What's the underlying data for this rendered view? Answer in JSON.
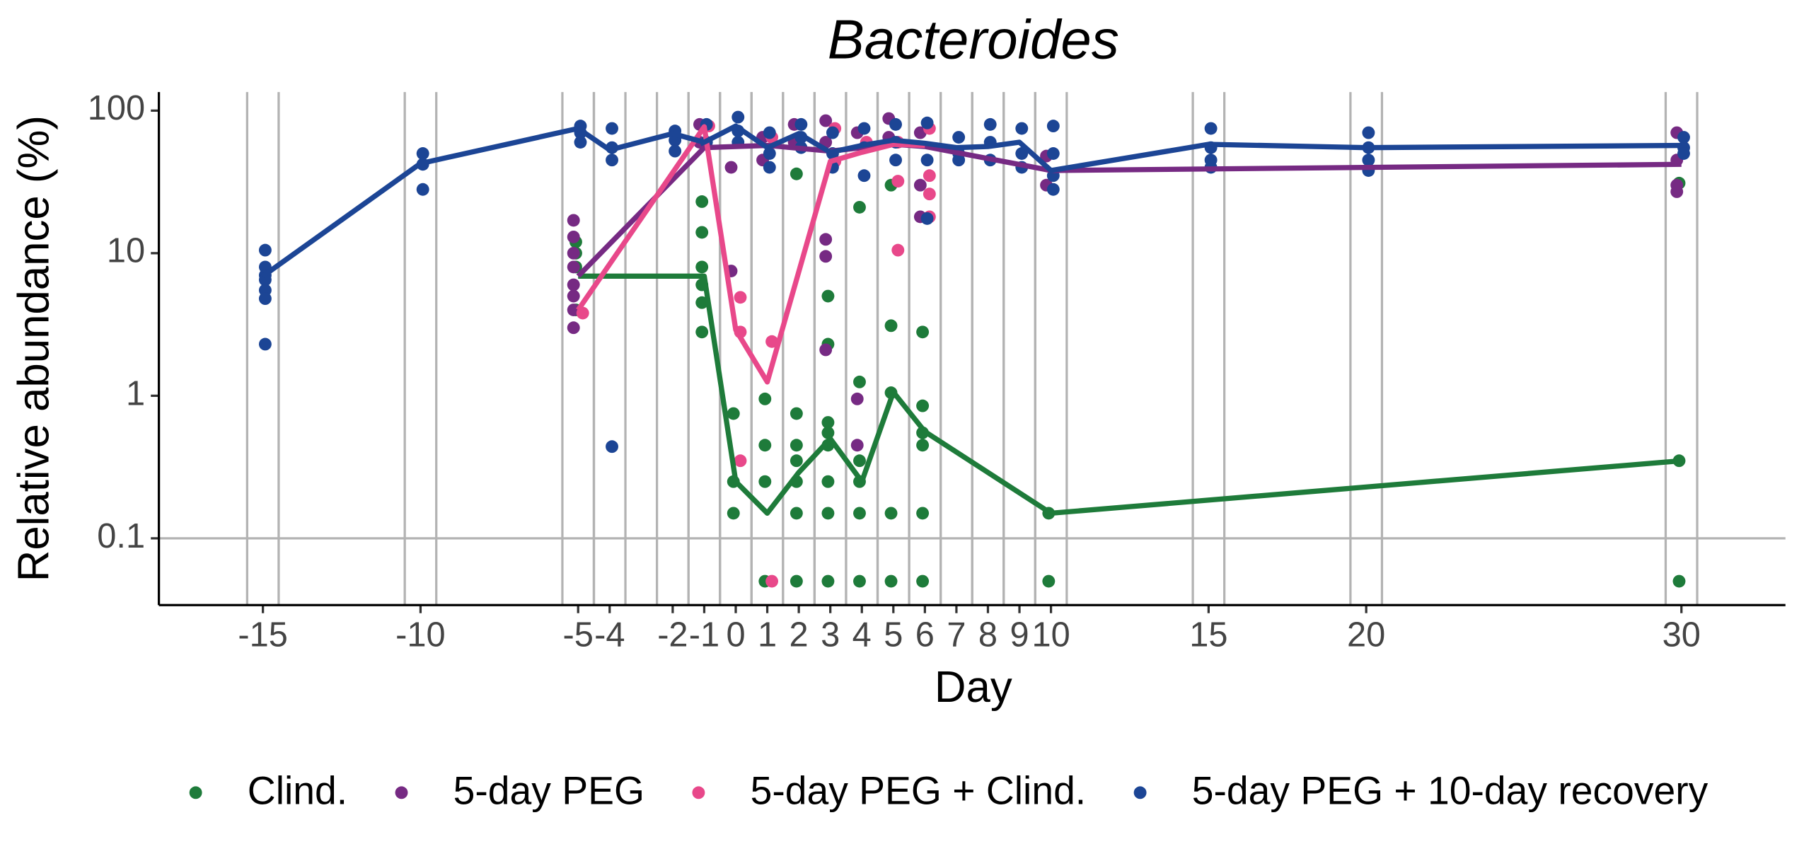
{
  "chart_data": {
    "type": "line",
    "title": "Bacteroides",
    "xlabel": "Day",
    "ylabel": "Relative abundance (%)",
    "log_y": true,
    "xlim": [
      -18.3,
      33.3
    ],
    "ylim": [
      0.034,
      135
    ],
    "xticks": [
      -15,
      -10,
      -5,
      -4,
      -2,
      -1,
      0,
      1,
      2,
      3,
      4,
      5,
      6,
      7,
      8,
      9,
      10,
      15,
      20,
      30
    ],
    "yticks": [
      0.1,
      1,
      10,
      100
    ],
    "hline": 0.1,
    "legend": "bottom",
    "series": [
      {
        "name": "Clind.",
        "color": "#1e7b3a",
        "x": [
          -5,
          -1,
          0,
          1,
          2,
          3,
          4,
          5,
          6,
          10,
          30
        ],
        "values": [
          6.9,
          6.9,
          0.25,
          0.15,
          0.29,
          0.5,
          0.25,
          1.06,
          0.56,
          0.15,
          0.35
        ],
        "points": [
          [
            -5,
            4
          ],
          [
            -5,
            8
          ],
          [
            -5,
            10
          ],
          [
            -5,
            12
          ],
          [
            -1,
            23
          ],
          [
            -1,
            14
          ],
          [
            -1,
            8
          ],
          [
            -1,
            6
          ],
          [
            -1,
            4.5
          ],
          [
            -1,
            2.8
          ],
          [
            0,
            0.75
          ],
          [
            0,
            0.25
          ],
          [
            0,
            0.15
          ],
          [
            1,
            0.95
          ],
          [
            1,
            0.45
          ],
          [
            1,
            0.25
          ],
          [
            1,
            0.05
          ],
          [
            2,
            36
          ],
          [
            2,
            0.75
          ],
          [
            2,
            0.45
          ],
          [
            2,
            0.35
          ],
          [
            2,
            0.25
          ],
          [
            2,
            0.15
          ],
          [
            2,
            0.05
          ],
          [
            3,
            5
          ],
          [
            3,
            2.3
          ],
          [
            3,
            0.65
          ],
          [
            3,
            0.55
          ],
          [
            3,
            0.45
          ],
          [
            3,
            0.25
          ],
          [
            3,
            0.15
          ],
          [
            3,
            0.05
          ],
          [
            4,
            21
          ],
          [
            4,
            1.25
          ],
          [
            4,
            0.35
          ],
          [
            4,
            0.25
          ],
          [
            4,
            0.15
          ],
          [
            4,
            0.05
          ],
          [
            5,
            30
          ],
          [
            5,
            3.1
          ],
          [
            5,
            1.05
          ],
          [
            5,
            0.15
          ],
          [
            5,
            0.05
          ],
          [
            6,
            2.8
          ],
          [
            6,
            0.85
          ],
          [
            6,
            0.55
          ],
          [
            6,
            0.45
          ],
          [
            6,
            0.15
          ],
          [
            6,
            0.05
          ],
          [
            10,
            0.15
          ],
          [
            10,
            0.05
          ],
          [
            30,
            31
          ],
          [
            30,
            0.35
          ],
          [
            30,
            0.05
          ]
        ]
      },
      {
        "name": "5-day PEG",
        "color": "#762a83",
        "x": [
          -5,
          -1,
          1,
          3,
          5,
          6,
          10,
          30
        ],
        "values": [
          6.9,
          55,
          57,
          52,
          58,
          56,
          38,
          42
        ],
        "points": [
          [
            -5,
            17
          ],
          [
            -5,
            13
          ],
          [
            -5,
            10
          ],
          [
            -5,
            8
          ],
          [
            -5,
            6
          ],
          [
            -5,
            5
          ],
          [
            -5,
            4
          ],
          [
            -5,
            3
          ],
          [
            -1,
            80
          ],
          [
            -1,
            60
          ],
          [
            0,
            40
          ],
          [
            0,
            7.5
          ],
          [
            1,
            65
          ],
          [
            1,
            45
          ],
          [
            2,
            80
          ],
          [
            2,
            60
          ],
          [
            3,
            85
          ],
          [
            3,
            60
          ],
          [
            3,
            12.5
          ],
          [
            3,
            9.5
          ],
          [
            3,
            2.1
          ],
          [
            4,
            70
          ],
          [
            4,
            0.95
          ],
          [
            4,
            0.45
          ],
          [
            5,
            88
          ],
          [
            5,
            65
          ],
          [
            6,
            30
          ],
          [
            6,
            18
          ],
          [
            6,
            70
          ],
          [
            10,
            48
          ],
          [
            10,
            30
          ],
          [
            30,
            70
          ],
          [
            30,
            45
          ],
          [
            30,
            30
          ],
          [
            30,
            27
          ]
        ]
      },
      {
        "name": "5-day PEG + Clind.",
        "color": "#e8488a",
        "x": [
          -5,
          -1,
          0,
          1,
          3,
          4,
          5,
          6
        ],
        "values": [
          4,
          77,
          2.9,
          1.25,
          44,
          51,
          58,
          57
        ],
        "points": [
          [
            -5,
            3.8
          ],
          [
            -1,
            78
          ],
          [
            0,
            4.9
          ],
          [
            0,
            2.8
          ],
          [
            0,
            0.35
          ],
          [
            1,
            2.4
          ],
          [
            1,
            0.05
          ],
          [
            1,
            65
          ],
          [
            3,
            44
          ],
          [
            3,
            75
          ],
          [
            4,
            60
          ],
          [
            5,
            60
          ],
          [
            5,
            32
          ],
          [
            5,
            10.5
          ],
          [
            6,
            75
          ],
          [
            6,
            35
          ],
          [
            6,
            26
          ],
          [
            6,
            18
          ]
        ]
      },
      {
        "name": "5-day PEG + 10-day recovery",
        "color": "#1c4595",
        "x": [
          -15,
          -10,
          -5,
          -4,
          -2,
          -1,
          0,
          1,
          2,
          3,
          4,
          5,
          6,
          7,
          8,
          9,
          10,
          15,
          20,
          30
        ],
        "values": [
          6.9,
          42.6,
          75,
          53,
          69,
          60,
          78,
          55,
          69,
          51,
          57,
          62,
          59,
          55,
          56,
          60,
          38,
          58,
          55,
          57
        ],
        "points": [
          [
            -15,
            10.5
          ],
          [
            -15,
            8
          ],
          [
            -15,
            7
          ],
          [
            -15,
            6.5
          ],
          [
            -15,
            5.5
          ],
          [
            -15,
            4.8
          ],
          [
            -15,
            2.3
          ],
          [
            -10,
            50
          ],
          [
            -10,
            42
          ],
          [
            -10,
            28
          ],
          [
            -5,
            78
          ],
          [
            -5,
            70
          ],
          [
            -5,
            60
          ],
          [
            -4,
            75
          ],
          [
            -4,
            55
          ],
          [
            -4,
            45
          ],
          [
            -4,
            0.44
          ],
          [
            -2,
            72
          ],
          [
            -2,
            62
          ],
          [
            -2,
            52
          ],
          [
            -1,
            80
          ],
          [
            -1,
            60
          ],
          [
            0,
            90
          ],
          [
            0,
            72
          ],
          [
            0,
            60
          ],
          [
            1,
            70
          ],
          [
            1,
            50
          ],
          [
            1,
            40
          ],
          [
            2,
            80
          ],
          [
            2,
            65
          ],
          [
            2,
            55
          ],
          [
            3,
            70
          ],
          [
            3,
            50
          ],
          [
            3,
            40
          ],
          [
            4,
            75
          ],
          [
            4,
            55
          ],
          [
            4,
            35
          ],
          [
            5,
            80
          ],
          [
            5,
            60
          ],
          [
            5,
            45
          ],
          [
            6,
            82
          ],
          [
            6,
            45
          ],
          [
            6,
            17.5
          ],
          [
            7,
            65
          ],
          [
            7,
            50
          ],
          [
            7,
            45
          ],
          [
            8,
            80
          ],
          [
            8,
            60
          ],
          [
            8,
            45
          ],
          [
            9,
            75
          ],
          [
            9,
            50
          ],
          [
            9,
            40
          ],
          [
            10,
            78
          ],
          [
            10,
            50
          ],
          [
            10,
            35
          ],
          [
            10,
            28
          ],
          [
            15,
            75
          ],
          [
            15,
            55
          ],
          [
            15,
            45
          ],
          [
            15,
            40
          ],
          [
            20,
            70
          ],
          [
            20,
            55
          ],
          [
            20,
            45
          ],
          [
            20,
            38
          ],
          [
            30,
            65
          ],
          [
            30,
            55
          ],
          [
            30,
            50
          ]
        ]
      }
    ]
  }
}
